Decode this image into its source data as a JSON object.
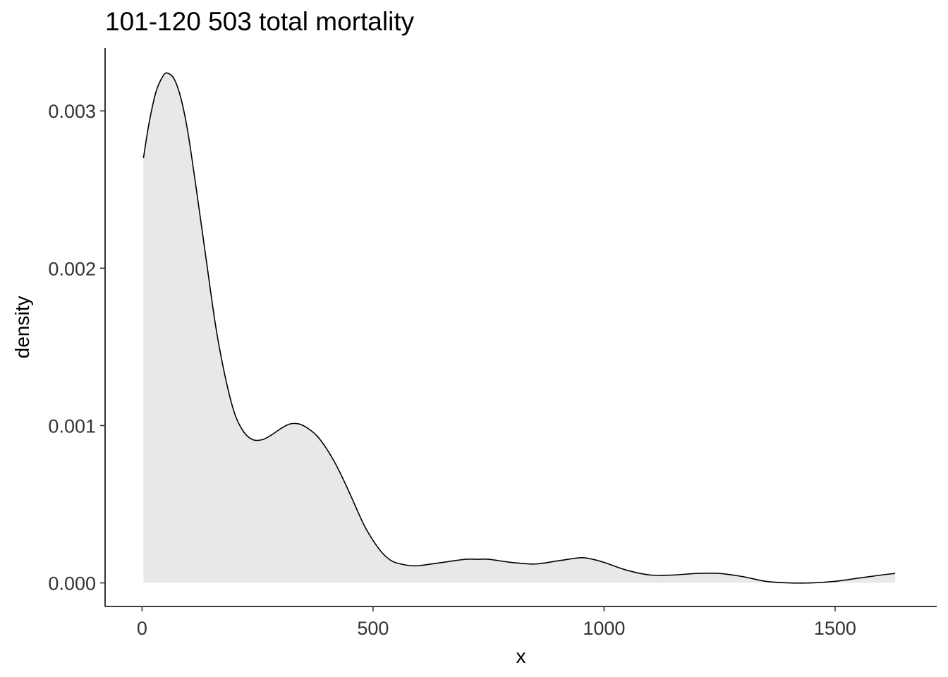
{
  "chart_data": {
    "type": "area",
    "title": "101-120 503 total mortality",
    "xlabel": "x",
    "ylabel": "density",
    "xlim": [
      -80,
      1720
    ],
    "ylim": [
      -0.00015,
      0.0034
    ],
    "x_ticks": [
      0,
      500,
      1000,
      1500
    ],
    "x_tick_labels": [
      "0",
      "500",
      "1000",
      "1500"
    ],
    "y_ticks": [
      0,
      0.001,
      0.002,
      0.003
    ],
    "y_tick_labels": [
      "0.000",
      "0.001",
      "0.002",
      "0.003"
    ],
    "grid": false,
    "fill_color": "#e8e8e8",
    "line_color": "#000000",
    "series": [
      {
        "x": [
          3,
          15,
          30,
          45,
          55,
          70,
          85,
          100,
          120,
          140,
          160,
          180,
          200,
          220,
          240,
          260,
          280,
          300,
          320,
          340,
          360,
          380,
          400,
          420,
          440,
          460,
          480,
          500,
          520,
          540,
          560,
          580,
          600,
          650,
          700,
          725,
          750,
          800,
          850,
          900,
          950,
          975,
          1000,
          1050,
          1100,
          1150,
          1200,
          1250,
          1300,
          1350,
          1400,
          1450,
          1500,
          1550,
          1600,
          1630
        ],
        "y": [
          0.0027,
          0.00292,
          0.00312,
          0.00322,
          0.00324,
          0.0032,
          0.00307,
          0.00285,
          0.00245,
          0.00203,
          0.00162,
          0.00131,
          0.00108,
          0.00096,
          0.00091,
          0.00091,
          0.00094,
          0.00098,
          0.00101,
          0.00101,
          0.00098,
          0.00093,
          0.00085,
          0.00075,
          0.00063,
          0.0005,
          0.00037,
          0.00027,
          0.00019,
          0.00014,
          0.00012,
          0.00011,
          0.00011,
          0.00013,
          0.00015,
          0.00015,
          0.00015,
          0.00013,
          0.00012,
          0.00014,
          0.00016,
          0.00015,
          0.00013,
          8e-05,
          5e-05,
          5e-05,
          6e-05,
          6e-05,
          4e-05,
          1e-05,
          0.0,
          0.0,
          1e-05,
          3e-05,
          5e-05,
          6e-05
        ]
      }
    ]
  }
}
